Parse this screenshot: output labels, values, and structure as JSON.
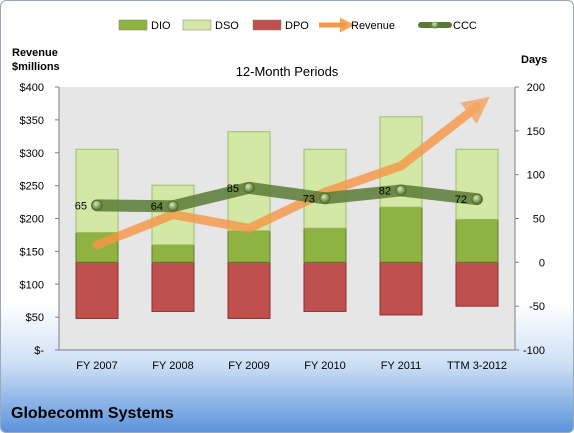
{
  "chart_data": {
    "type": "bar",
    "title": "12-Month Periods",
    "company": "Globecomm Systems",
    "left_axis": {
      "label": [
        "Revenue",
        "$millions"
      ],
      "ylim": [
        0,
        400
      ],
      "ticks": [
        {
          "value": 0,
          "label": "$-"
        },
        {
          "value": 50,
          "label": "$50"
        },
        {
          "value": 100,
          "label": "$100"
        },
        {
          "value": 150,
          "label": "$150"
        },
        {
          "value": 200,
          "label": "$200"
        },
        {
          "value": 250,
          "label": "$250"
        },
        {
          "value": 300,
          "label": "$300"
        },
        {
          "value": 350,
          "label": "$350"
        },
        {
          "value": 400,
          "label": "$400"
        }
      ]
    },
    "right_axis": {
      "label": "Days",
      "ylim": [
        -100,
        200
      ],
      "ticks": [
        -100,
        -50,
        0,
        50,
        100,
        150,
        200
      ]
    },
    "categories": [
      "FY 2007",
      "FY 2008",
      "FY 2009",
      "FY 2010",
      "FY 2011",
      "TTM 3-2012"
    ],
    "legend": {
      "position": "top",
      "items": [
        {
          "name": "DIO",
          "color": "#8fb340"
        },
        {
          "name": "DSO",
          "color": "#d4e8a6"
        },
        {
          "name": "DPO",
          "color": "#c0504d"
        },
        {
          "name": "Revenue",
          "color": "#f79646"
        },
        {
          "name": "CCC",
          "color": "#5a7a34"
        }
      ]
    },
    "series": [
      {
        "name": "DIO",
        "values": [
          34,
          20,
          36,
          39,
          63,
          49
        ]
      },
      {
        "name": "DSO",
        "values": [
          95,
          68,
          113,
          90,
          103,
          80
        ]
      },
      {
        "name": "DPO",
        "values": [
          -64,
          -56,
          -64,
          -56,
          -60,
          -50
        ]
      },
      {
        "name": "Revenue",
        "values": [
          160,
          206,
          185,
          240,
          280,
          370
        ]
      },
      {
        "name": "CCC",
        "values": [
          65,
          64,
          85,
          73,
          82,
          72
        ]
      }
    ],
    "grid": false,
    "colors": {
      "plot_bg": "#e6e6e6",
      "dio": "#8fb340",
      "dso": "#d4e8a6",
      "dpo": "#c0504d",
      "revenue": "#f79646",
      "ccc": "#5a7a34"
    }
  }
}
